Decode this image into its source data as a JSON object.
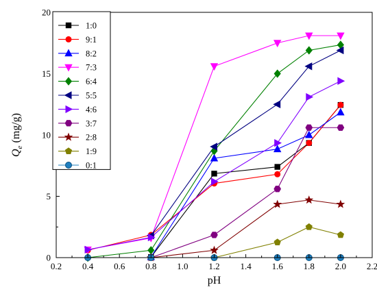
{
  "chart_data": {
    "type": "line",
    "xlabel": "pH",
    "ylabel": "Q",
    "ylabel_sub": "e",
    "ylabel_unit": " (mg/g)",
    "xlim": [
      0.2,
      2.2
    ],
    "ylim": [
      0,
      20
    ],
    "xticks": [
      "0.2",
      "0.4",
      "0.6",
      "0.8",
      "1.0",
      "1.2",
      "1.4",
      "1.6",
      "1.8",
      "2.0",
      "2.2"
    ],
    "yticks": [
      "0",
      "5",
      "10",
      "15",
      "20"
    ],
    "legend_position": "top-left",
    "series": [
      {
        "name": "1:0",
        "color": "#000000",
        "marker": "square",
        "points": [
          [
            0.8,
            0.05
          ],
          [
            1.2,
            6.85
          ],
          [
            1.6,
            7.4
          ],
          [
            1.8,
            9.35
          ],
          [
            2.0,
            12.45
          ]
        ]
      },
      {
        "name": "9:1",
        "color": "#ff0000",
        "marker": "circle",
        "points": [
          [
            0.4,
            0.6
          ],
          [
            0.8,
            1.85
          ],
          [
            1.2,
            6.05
          ],
          [
            1.6,
            6.8
          ],
          [
            1.8,
            9.35
          ],
          [
            2.0,
            12.45
          ]
        ]
      },
      {
        "name": "8:2",
        "color": "#0000ff",
        "marker": "triangle-up",
        "points": [
          [
            0.8,
            0.05
          ],
          [
            1.2,
            8.1
          ],
          [
            1.6,
            8.85
          ],
          [
            1.8,
            10.0
          ],
          [
            2.0,
            11.85
          ]
        ]
      },
      {
        "name": "7:3",
        "color": "#ff00ff",
        "marker": "triangle-down",
        "points": [
          [
            0.4,
            0.65
          ],
          [
            0.8,
            1.6
          ],
          [
            1.2,
            15.6
          ],
          [
            1.6,
            17.5
          ],
          [
            1.8,
            18.1
          ],
          [
            2.0,
            18.1
          ]
        ]
      },
      {
        "name": "6:4",
        "color": "#008000",
        "marker": "diamond",
        "points": [
          [
            0.4,
            0.0
          ],
          [
            0.8,
            0.6
          ],
          [
            1.2,
            8.7
          ],
          [
            1.6,
            15.0
          ],
          [
            1.8,
            16.9
          ],
          [
            2.0,
            17.35
          ]
        ]
      },
      {
        "name": "5:5",
        "color": "#000080",
        "marker": "triangle-left",
        "points": [
          [
            0.8,
            1.8
          ],
          [
            1.2,
            9.05
          ],
          [
            1.6,
            12.5
          ],
          [
            1.8,
            15.6
          ],
          [
            2.0,
            16.9
          ]
        ]
      },
      {
        "name": "4:6",
        "color": "#8000ff",
        "marker": "triangle-right",
        "points": [
          [
            0.4,
            0.65
          ],
          [
            0.8,
            1.65
          ],
          [
            1.2,
            6.2
          ],
          [
            1.6,
            9.35
          ],
          [
            1.8,
            13.1
          ],
          [
            2.0,
            14.4
          ]
        ]
      },
      {
        "name": "3:7",
        "color": "#800080",
        "marker": "hexagon",
        "points": [
          [
            0.8,
            0.0
          ],
          [
            1.2,
            1.85
          ],
          [
            1.6,
            5.6
          ],
          [
            1.8,
            10.6
          ],
          [
            2.0,
            10.6
          ]
        ]
      },
      {
        "name": "2:8",
        "color": "#800000",
        "marker": "star",
        "points": [
          [
            0.8,
            0.0
          ],
          [
            1.2,
            0.6
          ],
          [
            1.6,
            4.35
          ],
          [
            1.8,
            4.7
          ],
          [
            2.0,
            4.35
          ]
        ]
      },
      {
        "name": "1:9",
        "color": "#808000",
        "marker": "pentagon",
        "points": [
          [
            1.2,
            0.0
          ],
          [
            1.6,
            1.25
          ],
          [
            1.8,
            2.5
          ],
          [
            2.0,
            1.85
          ]
        ]
      },
      {
        "name": "0:1",
        "color": "#1f7fbf",
        "marker": "sphere",
        "points": [
          [
            0.4,
            0.0
          ],
          [
            0.8,
            0.0
          ],
          [
            1.2,
            0.0
          ],
          [
            1.6,
            0.0
          ],
          [
            1.8,
            0.0
          ],
          [
            2.0,
            0.0
          ]
        ]
      }
    ]
  }
}
